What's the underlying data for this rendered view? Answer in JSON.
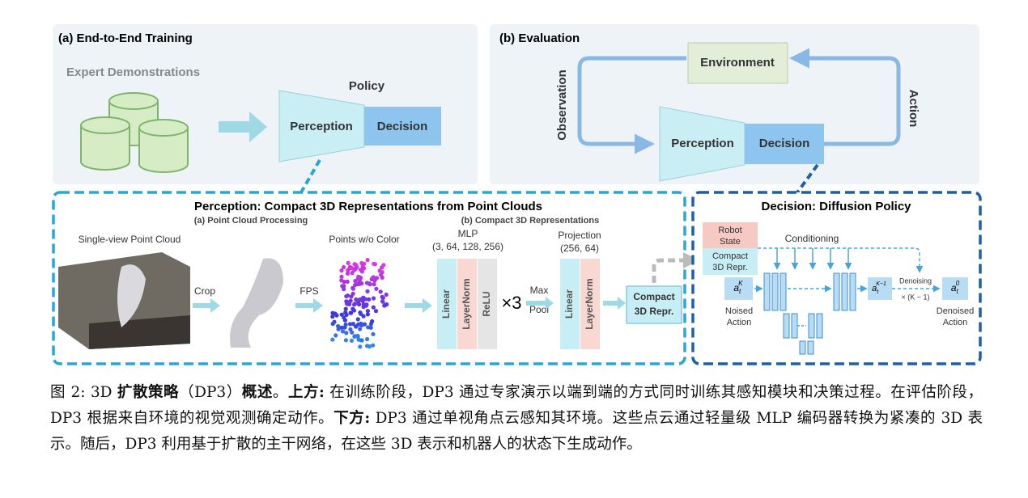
{
  "panel_a": {
    "title": "(a) End-to-End Training",
    "expert": "Expert Demonstrations",
    "policy": "Policy",
    "perception": "Perception",
    "decision": "Decision"
  },
  "panel_b": {
    "title": "(b) Evaluation",
    "environment": "Environment",
    "observation": "Observation",
    "action": "Action",
    "perception": "Perception",
    "decision": "Decision"
  },
  "perception_box": {
    "title": "Perception: Compact 3D Representations from Point Clouds",
    "sub_a": "(a) Point Cloud Processing",
    "sub_b": "(b) Compact 3D Representations",
    "single_view": "Single-view Point Cloud",
    "crop": "Crop",
    "fps": "FPS",
    "points_wo_color": "Points w/o Color",
    "mlp": "MLP",
    "mlp_dims": "(3, 64, 128, 256)",
    "linear": "Linear",
    "layernorm": "LayerNorm",
    "relu": "ReLU",
    "times3": "×3",
    "max_pool": [
      "Max",
      "Pool"
    ],
    "projection": "Projection",
    "proj_dims": "(256, 64)",
    "linear2": "Linear",
    "layernorm2": "LayerNorm",
    "compact": [
      "Compact",
      "3D Repr."
    ]
  },
  "decision_box": {
    "title": "Decision: Diffusion Policy",
    "robot_state": [
      "Robot",
      "State"
    ],
    "compact": [
      "Compact",
      "3D Repr."
    ],
    "conditioning": "Conditioning",
    "a_k": {
      "base": "a",
      "sub": "t",
      "sup": "K"
    },
    "noised": [
      "Noised",
      "Action"
    ],
    "a_k1": {
      "base": "a",
      "sub": "t",
      "sup": "K−1"
    },
    "denoising": "Denoising",
    "times_k": "× (K − 1)",
    "a_0": {
      "base": "a",
      "sub": "t",
      "sup": "0"
    },
    "denoised": [
      "Denoised",
      "Action"
    ]
  },
  "caption": {
    "segments": [
      {
        "text": "图 2: 3D ",
        "bold": false
      },
      {
        "text": "扩散策略",
        "bold": true
      },
      {
        "text": "（DP3）",
        "bold": false
      },
      {
        "text": "概述",
        "bold": true
      },
      {
        "text": "。",
        "bold": false
      },
      {
        "text": "上方:",
        "bold": true
      },
      {
        "text": " 在训练阶段，DP3 通过专家演示以端到端的方式同时训练其感知模块和决策过程。在评估阶段，DP3 根据来自环境的视觉观测确定动作。",
        "bold": false
      },
      {
        "text": "下方:",
        "bold": true
      },
      {
        "text": " DP3 通过单视角点云感知其环境。这些点云通过轻量级 MLP 编码器转换为紧凑的 3D 表示。随后，DP3 利用基于扩散的主干网络，在这些 3D 表示和机器人的状态下生成动作。",
        "bold": false
      }
    ]
  }
}
